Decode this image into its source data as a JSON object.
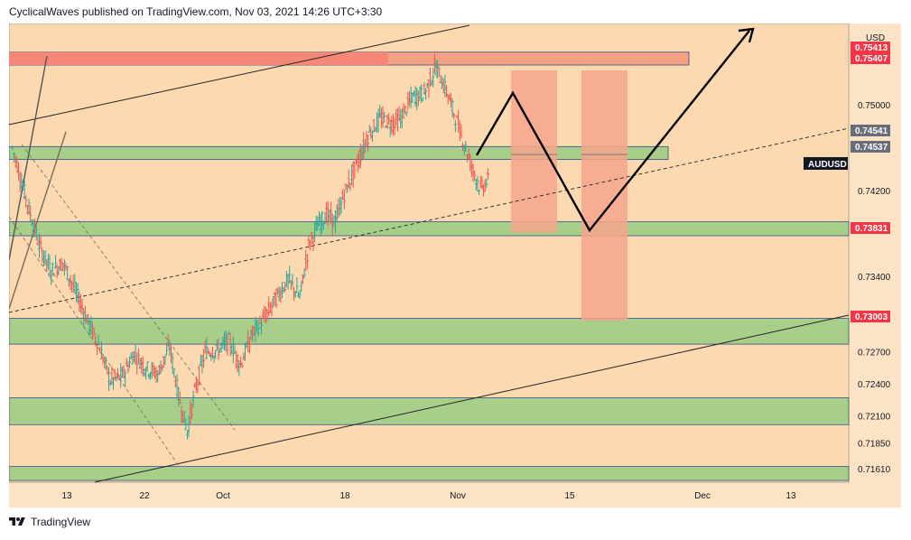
{
  "header": {
    "text": "CyclicalWaves published on TradingView.com, Nov 03, 2021 14:26 UTC+3:30"
  },
  "footer": {
    "brand": "TradingView",
    "logo_icon": "tradingview-logo-icon"
  },
  "colors": {
    "background": "#fde3c6",
    "plot_bg": "#fcd9b0",
    "bull": "#26a69a",
    "bear": "#ef5350",
    "support_zone": "#a8cf8a",
    "resistance_zone": "#f5a283",
    "projection_zone": "#f6a58c",
    "price_tag_red": "#f23645",
    "price_tag_grey": "#6a6d78",
    "symbol_tag": "#131722"
  },
  "chart_data": {
    "type": "candlestick",
    "symbol": "AUDUSD",
    "currency": "USD",
    "price_axis_ticks": [
      0.75,
      0.742,
      0.734,
      0.727,
      0.724,
      0.721,
      0.7185,
      0.7161
    ],
    "price_tags": [
      {
        "label": "0.75413",
        "value": 0.75413,
        "style": "red"
      },
      {
        "label": "0.75407",
        "value": 0.75407,
        "style": "red"
      },
      {
        "label": "0.74541",
        "value": 0.74541,
        "style": "grey"
      },
      {
        "label": "0.74537",
        "value": 0.74537,
        "style": "grey"
      },
      {
        "label": "0.73831",
        "value": 0.73831,
        "style": "red"
      },
      {
        "label": "0.73003",
        "value": 0.73003,
        "style": "red"
      }
    ],
    "symbol_tag": {
      "label": "AUDUSD",
      "value": 0.7435
    },
    "time_axis_ticks": [
      "13",
      "22",
      "Oct",
      "18",
      "Nov",
      "15",
      "Dec",
      "13"
    ],
    "ohlc_path": [
      [
        0,
        0.746
      ],
      [
        10,
        0.7408
      ],
      [
        18,
        0.7369
      ],
      [
        26,
        0.7345
      ],
      [
        34,
        0.7353
      ],
      [
        42,
        0.7328
      ],
      [
        50,
        0.7301
      ],
      [
        58,
        0.7277
      ],
      [
        66,
        0.7243
      ],
      [
        74,
        0.7247
      ],
      [
        82,
        0.7268
      ],
      [
        90,
        0.7255
      ],
      [
        98,
        0.7249
      ],
      [
        106,
        0.7275
      ],
      [
        112,
        0.7229
      ],
      [
        118,
        0.7196
      ],
      [
        123,
        0.7232
      ],
      [
        130,
        0.727
      ],
      [
        138,
        0.7271
      ],
      [
        146,
        0.728
      ],
      [
        154,
        0.7258
      ],
      [
        162,
        0.7287
      ],
      [
        170,
        0.7301
      ],
      [
        178,
        0.732
      ],
      [
        186,
        0.7337
      ],
      [
        194,
        0.7321
      ],
      [
        200,
        0.7369
      ],
      [
        206,
        0.7387
      ],
      [
        212,
        0.7398
      ],
      [
        218,
        0.7391
      ],
      [
        224,
        0.7417
      ],
      [
        232,
        0.7443
      ],
      [
        240,
        0.7471
      ],
      [
        248,
        0.7487
      ],
      [
        256,
        0.7483
      ],
      [
        262,
        0.7487
      ],
      [
        270,
        0.7507
      ],
      [
        278,
        0.7511
      ],
      [
        286,
        0.7535
      ],
      [
        294,
        0.7509
      ],
      [
        302,
        0.7476
      ],
      [
        310,
        0.7443
      ],
      [
        316,
        0.7421
      ],
      [
        322,
        0.7431
      ]
    ],
    "zones": [
      {
        "name": "resistance",
        "from": 0.7537,
        "to": 0.7549,
        "kind": "red"
      },
      {
        "name": "zone-1",
        "from": 0.7449,
        "to": 0.7461,
        "kind": "green"
      },
      {
        "name": "zone-2",
        "from": 0.7378,
        "to": 0.7391,
        "kind": "green"
      },
      {
        "name": "zone-3",
        "from": 0.7277,
        "to": 0.7301,
        "kind": "green"
      },
      {
        "name": "zone-4",
        "from": 0.7202,
        "to": 0.7227,
        "kind": "green"
      },
      {
        "name": "zone-5",
        "from": 0.715,
        "to": 0.7163,
        "kind": "green"
      }
    ],
    "projection_boxes": [
      {
        "from": 0.7381,
        "to": 0.7532
      },
      {
        "from": 0.7299,
        "to": 0.7532
      }
    ],
    "projection_path": [
      [
        0.7453
      ],
      [
        0.7511
      ],
      [
        0.7383
      ],
      [
        0.7556
      ]
    ],
    "grid": false
  }
}
